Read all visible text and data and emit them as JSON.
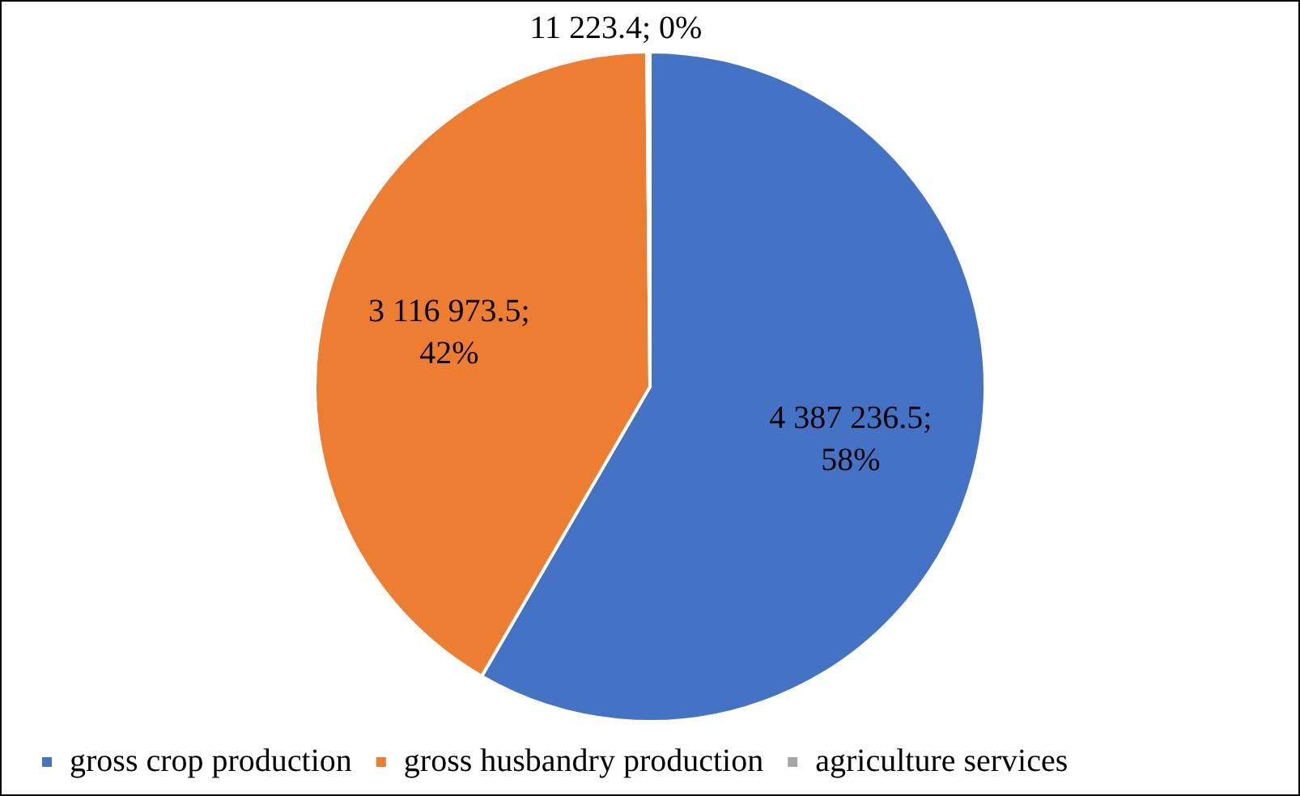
{
  "chart_data": {
    "type": "pie",
    "categories": [
      "gross crop production",
      "gross husbandry production",
      "agriculture services"
    ],
    "values": [
      4387236.5,
      3116973.5,
      11223.4
    ],
    "colors": [
      "#4472c4",
      "#ed7d31",
      "#a5a5a5"
    ],
    "value_labels": [
      "4 387 236.5; 58%",
      "3 116 973.5; 42%",
      "11 223.4; 0%"
    ],
    "legend": "bottom"
  }
}
